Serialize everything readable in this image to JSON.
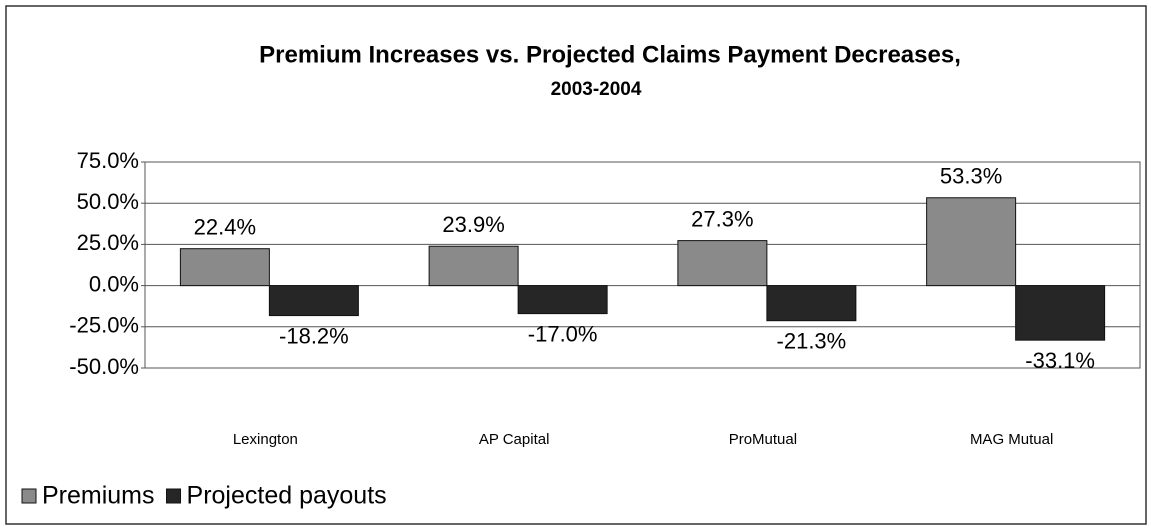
{
  "chart_data": {
    "type": "bar",
    "title": "Premium Increases vs. Projected Claims Payment Decreases,",
    "subtitle": "2003-2004",
    "categories": [
      "Lexington",
      "AP Capital",
      "ProMutual",
      "MAG Mutual"
    ],
    "series": [
      {
        "name": "Premiums",
        "color": "#8a8a8a",
        "values": [
          22.4,
          23.9,
          27.3,
          53.3
        ],
        "value_labels": [
          "22.4%",
          "23.9%",
          "27.3%",
          "53.3%"
        ]
      },
      {
        "name": "Projected payouts",
        "color": "#262626",
        "values": [
          -18.2,
          -17.0,
          -21.3,
          -33.1
        ],
        "value_labels": [
          "-18.2%",
          "-17.0%",
          "-21.3%",
          "-33.1%"
        ]
      }
    ],
    "ylim": [
      -50,
      75
    ],
    "yticks": [
      {
        "value": -50,
        "label": "-50.0%"
      },
      {
        "value": -25,
        "label": "-25.0%"
      },
      {
        "value": 0,
        "label": "0.0%"
      },
      {
        "value": 25,
        "label": "25.0%"
      },
      {
        "value": 50,
        "label": "50.0%"
      },
      {
        "value": 75,
        "label": "75.0%"
      }
    ],
    "grid": true,
    "legend": "bottom-left"
  }
}
